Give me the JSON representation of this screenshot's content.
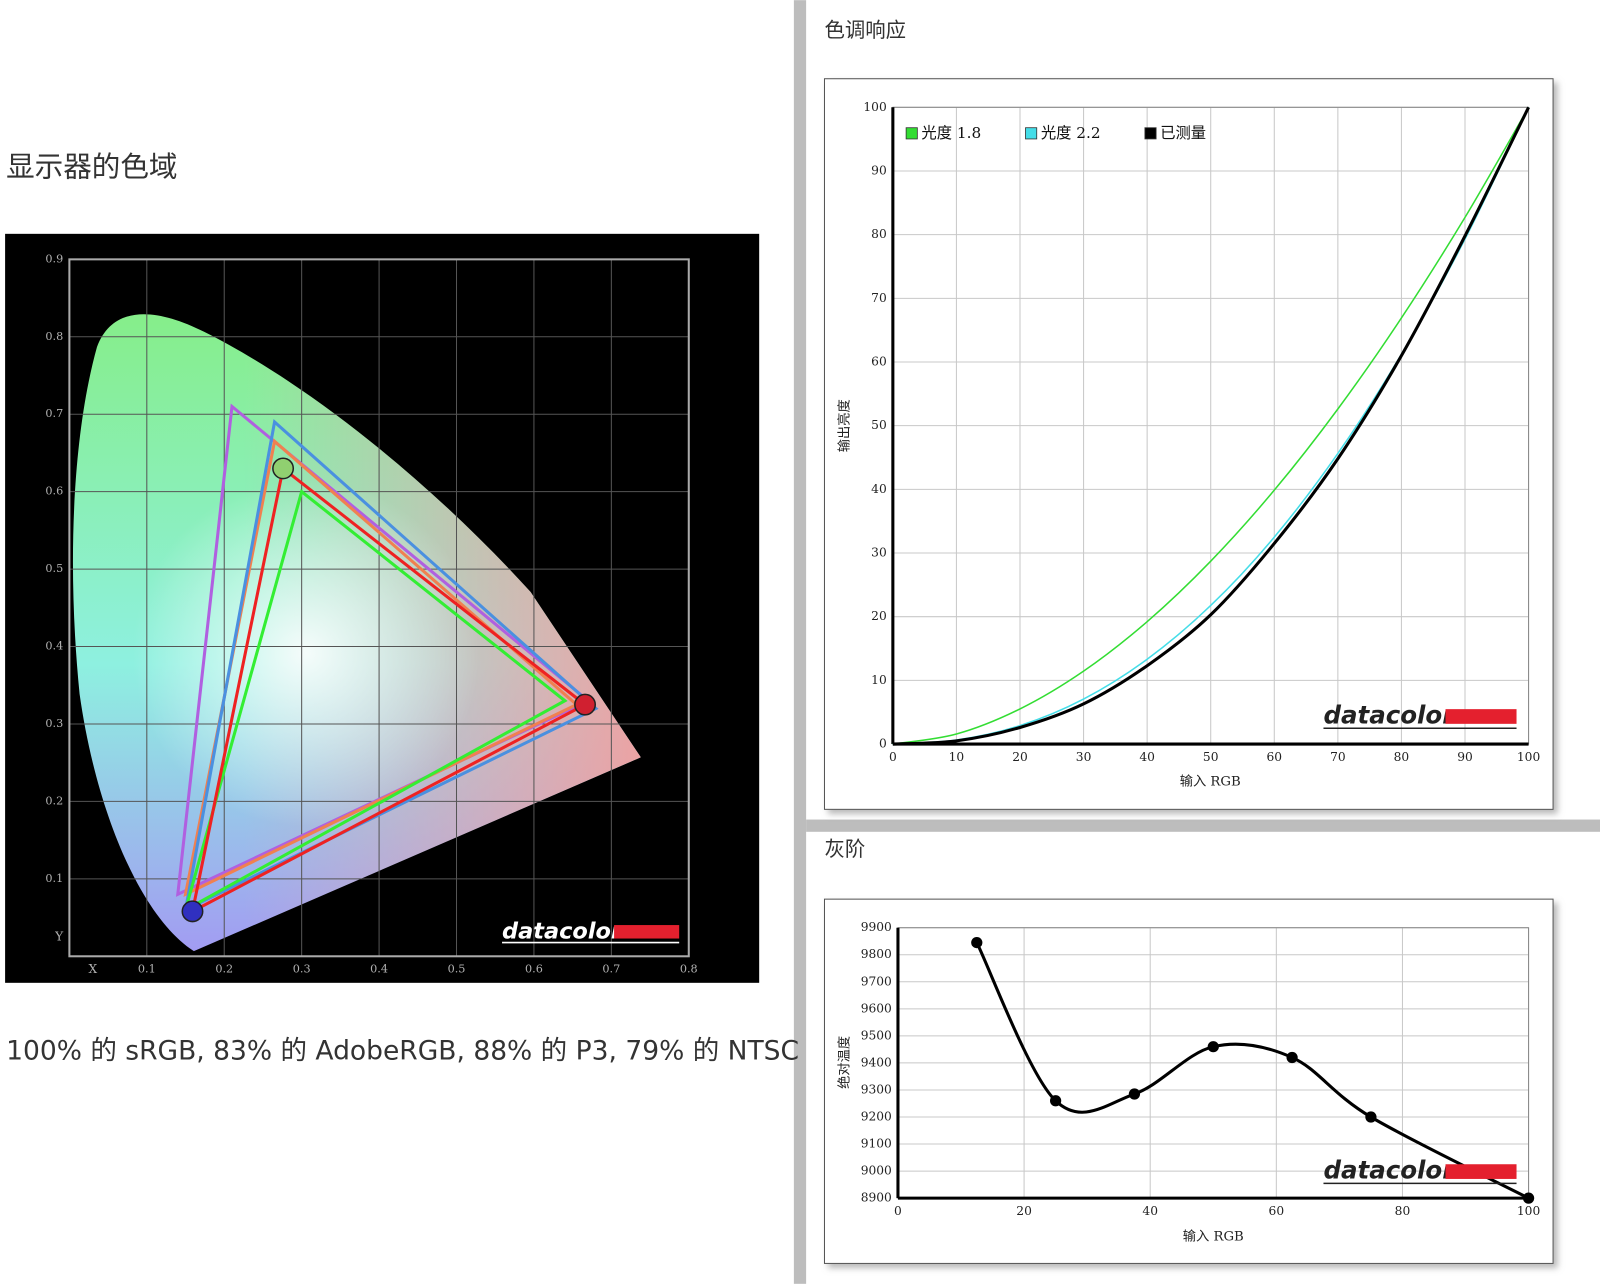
{
  "chart_data": [
    {
      "type": "chromaticity",
      "title": "显示器的色域",
      "caption": "100% 的 sRGB, 83% 的 AdobeRGB, 88% 的 P3, 79% 的 NTSC",
      "xlabel": "X",
      "ylabel": "Y",
      "watermark": "datacolor",
      "xlim": [
        0,
        0.8
      ],
      "ylim": [
        0,
        0.9
      ],
      "xticks": [
        0.1,
        0.2,
        0.3,
        0.4,
        0.5,
        0.6,
        0.7,
        0.8
      ],
      "yticks": [
        0.1,
        0.2,
        0.3,
        0.4,
        0.5,
        0.6,
        0.7,
        0.8,
        0.9
      ],
      "grid": true,
      "series": [
        {
          "color": "#b060e0",
          "x": [
            0.67,
            0.21,
            0.14
          ],
          "values": [
            0.33,
            0.71,
            0.08
          ]
        },
        {
          "color": "#f08050",
          "x": [
            0.655,
            0.265,
            0.15
          ],
          "values": [
            0.325,
            0.665,
            0.08
          ]
        },
        {
          "color": "#4a90e0",
          "x": [
            0.68,
            0.265,
            0.15
          ],
          "values": [
            0.32,
            0.69,
            0.06
          ]
        },
        {
          "color": "#33ee33",
          "x": [
            0.64,
            0.3,
            0.15
          ],
          "values": [
            0.33,
            0.6,
            0.06
          ]
        },
        {
          "color": "#ee2222",
          "x": [
            0.666,
            0.276,
            0.159
          ],
          "values": [
            0.325,
            0.63,
            0.058
          ],
          "marker_colors": [
            "#d02030",
            "#90d070",
            "#3030c0"
          ]
        }
      ]
    },
    {
      "type": "line",
      "title": "色调响应",
      "xlabel": "输入 RGB",
      "ylabel": "输出亮度",
      "watermark": "datacolor",
      "xlim": [
        0,
        100
      ],
      "ylim": [
        0,
        100
      ],
      "xticks": [
        0,
        10,
        20,
        30,
        40,
        50,
        60,
        70,
        80,
        90,
        100
      ],
      "yticks": [
        0,
        10,
        20,
        30,
        40,
        50,
        60,
        70,
        80,
        90,
        100
      ],
      "grid": true,
      "legend": "upper left",
      "x": [
        0,
        10,
        20,
        30,
        40,
        50,
        60,
        70,
        80,
        90,
        100
      ],
      "series": [
        {
          "name": "光度 1.8",
          "color": "#33dd33",
          "values": [
            0,
            1.58,
            5.52,
            11.45,
            19.22,
            28.72,
            39.87,
            52.62,
            66.92,
            82.72,
            100
          ]
        },
        {
          "name": "光度 2.2",
          "color": "#44dde8",
          "values": [
            0,
            0.63,
            2.9,
            7.07,
            13.32,
            21.76,
            32.5,
            45.63,
            61.21,
            79.31,
            100
          ]
        },
        {
          "name": "已测量",
          "color": "#000000",
          "values": [
            0,
            0.5,
            2.6,
            6.3,
            12.3,
            20.3,
            31.5,
            44.8,
            61.0,
            79.8,
            100
          ]
        }
      ]
    },
    {
      "type": "line",
      "title": "灰阶",
      "xlabel": "输入 RGB",
      "ylabel": "绝对温度",
      "watermark": "datacolor",
      "xlim": [
        0,
        100
      ],
      "ylim": [
        8900,
        9900
      ],
      "xticks": [
        0,
        20,
        40,
        60,
        80,
        100
      ],
      "yticks": [
        8900,
        9000,
        9100,
        9200,
        9300,
        9400,
        9500,
        9600,
        9700,
        9800,
        9900
      ],
      "grid": true,
      "x": [
        12.5,
        25,
        37.5,
        50,
        62.5,
        75,
        100
      ],
      "series": [
        {
          "color": "#000000",
          "markers": true,
          "values": [
            9845,
            9260,
            9285,
            9460,
            9420,
            9200,
            8900
          ]
        }
      ]
    }
  ]
}
